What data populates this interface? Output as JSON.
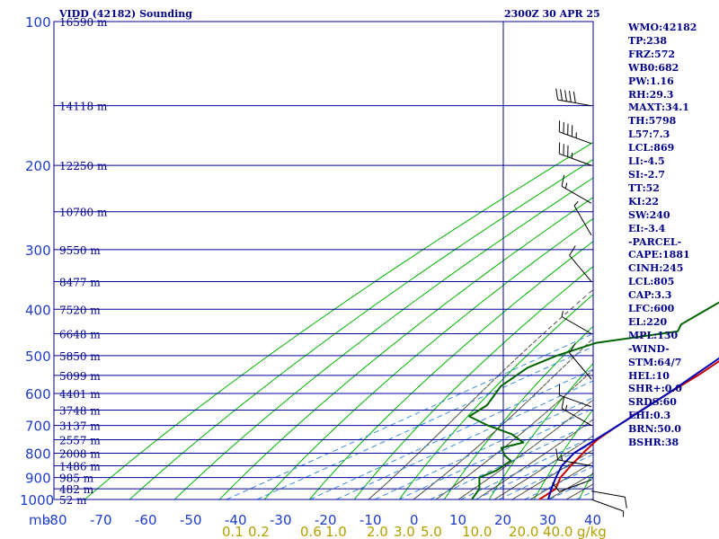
{
  "header": {
    "title": "VIDD (42182) Sounding",
    "time": "2300Z 30 APR 25"
  },
  "indices": [
    "WMO:42182",
    "TP:238",
    "FRZ:572",
    "WB0:682",
    "PW:1.16",
    "RH:29.3",
    "MAXT:34.1",
    "TH:5798",
    "L57:7.3",
    "LCL:869",
    "LI:-4.5",
    "SI:-2.7",
    "TT:52",
    "KI:22",
    "SW:240",
    "EI:-3.4",
    "-PARCEL-",
    "CAPE:1881",
    "CINH:245",
    "LCL:805",
    "CAP:3.3",
    "LFC:600",
    "EL:220",
    "MPL:130",
    "-WIND-",
    "STM:64/7",
    "HEL:10",
    "SHR+:0.0",
    "SRDS:60",
    "EHI:0.3",
    "BRN:50.0",
    "BSHR:38"
  ],
  "colors": {
    "temperature": "#c80000",
    "dewpoint": "#006400",
    "parcel": "#0000b4",
    "grid": "#0000a0",
    "dry_adiabat": "#00b400",
    "moist_adiabat": "#50503c",
    "mixing_ratio": "#3c8cdc",
    "wind_barb": "#000000",
    "pressure_label": "#1e3cc8",
    "height_label": "#00008b",
    "mixing_label": "#b0a000"
  },
  "chart_data": {
    "type": "line",
    "title": "VIDD (42182) Sounding",
    "subtitle": "2300Z 30 APR 25",
    "xlabel": "",
    "ylabel": "mb",
    "x_axis": {
      "ticks": [
        -80,
        -70,
        -60,
        -50,
        -40,
        -30,
        -20,
        -10,
        0,
        10,
        20,
        30,
        40
      ],
      "units": "degC"
    },
    "y_axis": {
      "ticks": [
        100,
        200,
        300,
        400,
        500,
        600,
        700,
        800,
        900,
        1000
      ],
      "scale": "log",
      "range": [
        100,
        1000
      ]
    },
    "grid": true,
    "extra_x_labels": [
      "-80",
      "-70",
      "-60",
      "-50",
      "-40",
      "-30",
      "-20",
      "-10",
      "0",
      "10",
      "20",
      "30",
      "40"
    ],
    "height_levels": [
      {
        "p": 100,
        "label": "16590 m"
      },
      {
        "p": 150,
        "label": "14118 m"
      },
      {
        "p": 200,
        "label": "12250 m"
      },
      {
        "p": 250,
        "label": "10780 m"
      },
      {
        "p": 300,
        "label": "9550 m"
      },
      {
        "p": 350,
        "label": "8477 m"
      },
      {
        "p": 400,
        "label": "7520 m"
      },
      {
        "p": 450,
        "label": "6648 m"
      },
      {
        "p": 500,
        "label": "5850 m"
      },
      {
        "p": 550,
        "label": "5099 m"
      },
      {
        "p": 600,
        "label": "4401 m"
      },
      {
        "p": 650,
        "label": "3748 m"
      },
      {
        "p": 700,
        "label": "3137 m"
      },
      {
        "p": 750,
        "label": "2557 m"
      },
      {
        "p": 800,
        "label": "2008 m"
      },
      {
        "p": 850,
        "label": "1486 m"
      },
      {
        "p": 900,
        "label": "985 m"
      },
      {
        "p": 950,
        "label": "482 m"
      },
      {
        "p": 1000,
        "label": "52 m"
      }
    ],
    "mixing_ratio_labels": [
      "0.1",
      "0.2",
      "0.6",
      "1.0",
      "2.0",
      "3.0",
      "5.0",
      "10.0",
      "20.0",
      "40.0",
      "g/kg"
    ],
    "series": [
      {
        "name": "temperature",
        "points": [
          [
            101,
            -46
          ],
          [
            112,
            -44
          ],
          [
            125,
            -41
          ],
          [
            140,
            -38
          ],
          [
            155,
            -37
          ],
          [
            165,
            -35
          ],
          [
            175,
            -34
          ],
          [
            185,
            -31
          ],
          [
            200,
            -30
          ],
          [
            215,
            -32
          ],
          [
            230,
            -36
          ],
          [
            255,
            -34
          ],
          [
            280,
            -32
          ],
          [
            315,
            -28
          ],
          [
            350,
            -24
          ],
          [
            400,
            -18
          ],
          [
            450,
            -12
          ],
          [
            500,
            -7
          ],
          [
            550,
            -3
          ],
          [
            600,
            0
          ],
          [
            650,
            3
          ],
          [
            700,
            6
          ],
          [
            750,
            9
          ],
          [
            800,
            13
          ],
          [
            850,
            17
          ],
          [
            900,
            21
          ],
          [
            950,
            26
          ],
          [
            1000,
            28
          ]
        ]
      },
      {
        "name": "dewpoint",
        "points": [
          [
            200,
            -62
          ],
          [
            215,
            -60
          ],
          [
            230,
            -58
          ],
          [
            250,
            -57
          ],
          [
            270,
            -53
          ],
          [
            295,
            -45
          ],
          [
            320,
            -43
          ],
          [
            350,
            -40
          ],
          [
            390,
            -37
          ],
          [
            430,
            -34
          ],
          [
            445,
            -31
          ],
          [
            470,
            -43
          ],
          [
            500,
            -45
          ],
          [
            530,
            -45
          ],
          [
            580,
            -41
          ],
          [
            635,
            -34
          ],
          [
            670,
            -32
          ],
          [
            700,
            -23
          ],
          [
            730,
            -13
          ],
          [
            760,
            -6
          ],
          [
            780,
            -8
          ],
          [
            810,
            -3
          ],
          [
            830,
            1
          ],
          [
            870,
            3
          ],
          [
            900,
            3
          ],
          [
            950,
            9
          ],
          [
            1000,
            13
          ]
        ]
      },
      {
        "name": "parcel",
        "points": [
          [
            120,
            -70
          ],
          [
            200,
            -51
          ],
          [
            250,
            -40
          ],
          [
            300,
            -31
          ],
          [
            400,
            -18
          ],
          [
            500,
            -8
          ],
          [
            600,
            0
          ],
          [
            700,
            6
          ],
          [
            800,
            11
          ],
          [
            850,
            15
          ],
          [
            900,
            20
          ],
          [
            950,
            25
          ],
          [
            1000,
            30
          ]
        ]
      }
    ],
    "wind_barbs": [
      {
        "p": 150,
        "dir": 280,
        "spd": 50
      },
      {
        "p": 180,
        "dir": 290,
        "spd": 45
      },
      {
        "p": 200,
        "dir": 290,
        "spd": 35
      },
      {
        "p": 240,
        "dir": 300,
        "spd": 15
      },
      {
        "p": 280,
        "dir": 330,
        "spd": 5
      },
      {
        "p": 350,
        "dir": 320,
        "spd": 10
      },
      {
        "p": 450,
        "dir": 300,
        "spd": 5
      },
      {
        "p": 560,
        "dir": 320,
        "spd": 10
      },
      {
        "p": 640,
        "dir": 290,
        "spd": 10
      },
      {
        "p": 700,
        "dir": 300,
        "spd": 15
      },
      {
        "p": 850,
        "dir": 280,
        "spd": 15
      },
      {
        "p": 910,
        "dir": 250,
        "spd": 10
      },
      {
        "p": 960,
        "dir": 100,
        "spd": 10
      },
      {
        "p": 1000,
        "dir": 110,
        "spd": 5
      }
    ]
  }
}
